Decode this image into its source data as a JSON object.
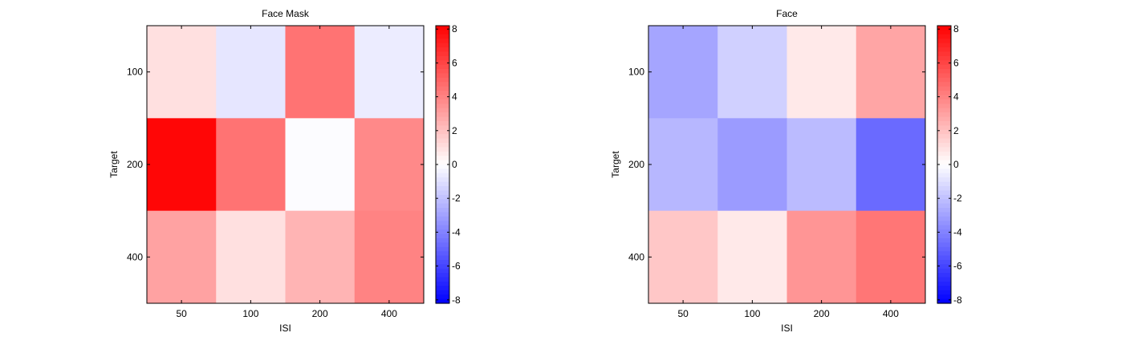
{
  "chart_data": [
    {
      "type": "heatmap",
      "title": "Face Mask",
      "xlabel": "ISI",
      "ylabel": "Target",
      "x_categories": [
        "50",
        "100",
        "200",
        "400"
      ],
      "y_categories": [
        "",
        "100",
        "",
        "200",
        "",
        "400",
        ""
      ],
      "y_rows": [
        "100",
        "200",
        "400"
      ],
      "values": [
        [
          1.0,
          -0.8,
          4.5,
          -0.6
        ],
        [
          8.0,
          4.5,
          -0.1,
          3.8
        ],
        [
          3.0,
          1.0,
          2.4,
          4.0
        ]
      ],
      "colorbar": {
        "range": [
          -8.2,
          8.2
        ],
        "ticks": [
          8,
          6,
          4,
          2,
          0,
          -2,
          -4,
          -6,
          -8
        ]
      },
      "grid": false
    },
    {
      "type": "heatmap",
      "title": "Face",
      "xlabel": "ISI",
      "ylabel": "Target",
      "x_categories": [
        "50",
        "100",
        "200",
        "400"
      ],
      "y_categories": [
        "",
        "100",
        "",
        "200",
        "",
        "400",
        ""
      ],
      "y_rows": [
        "100",
        "200",
        "400"
      ],
      "values": [
        [
          -2.9,
          -1.5,
          0.7,
          2.9
        ],
        [
          -2.3,
          -3.2,
          -2.2,
          -4.8
        ],
        [
          1.8,
          0.7,
          3.4,
          4.4
        ]
      ],
      "colorbar": {
        "range": [
          -8.2,
          8.2
        ],
        "ticks": [
          8,
          6,
          4,
          2,
          0,
          -2,
          -4,
          -6,
          -8
        ]
      },
      "grid": false
    }
  ]
}
